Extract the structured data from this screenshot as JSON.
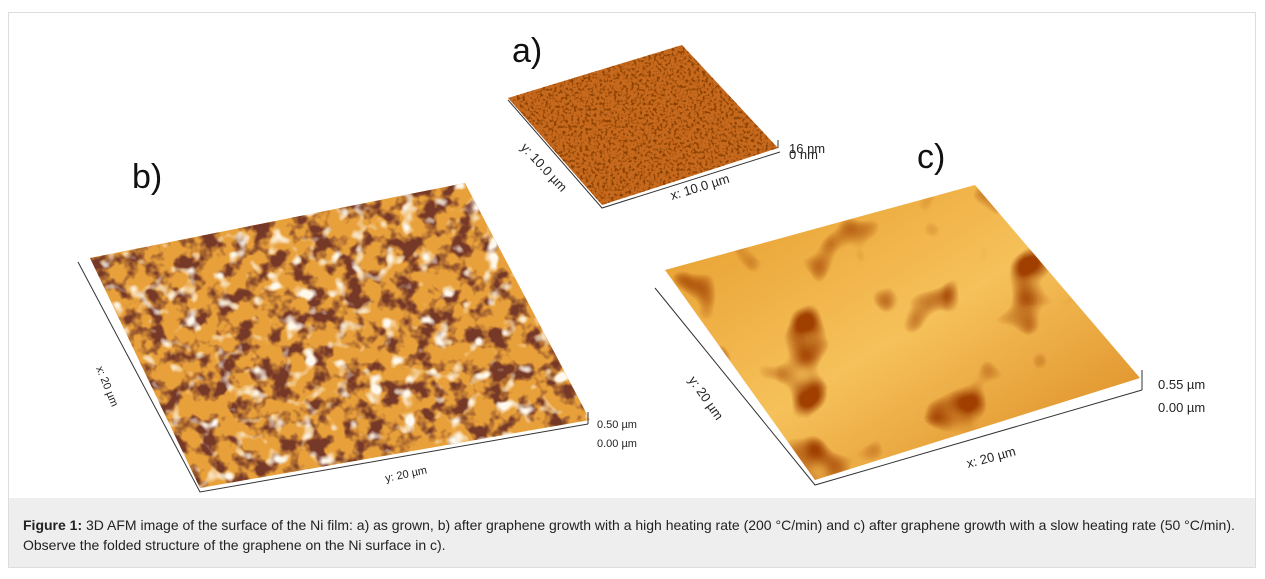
{
  "figure": {
    "panels": [
      {
        "label": "a)",
        "axis_labels": [
          "y: 10.0 µm",
          "x: 10.0 µm"
        ],
        "scale_labels": [
          "16 nm",
          "0 nm"
        ]
      },
      {
        "label": "b)",
        "axis_labels": [
          "x: 20 µm",
          "y: 20 µm"
        ],
        "scale_labels": [
          "0.50 µm",
          "0.00 µm"
        ]
      },
      {
        "label": "c)",
        "axis_labels": [
          "y: 20 µm",
          "x: 20 µm"
        ],
        "scale_labels": [
          "0.55 µm",
          "0.00 µm"
        ]
      }
    ],
    "caption": {
      "label": "Figure 1:",
      "text": " 3D AFM image of the surface of the Ni film: a) as grown, b) after graphene growth with a high heating rate (200 °C/min) and c) after graphene growth with a slow heating rate (50 °C/min). Observe the folded structure of the graphene on the Ni surface in c)."
    }
  }
}
